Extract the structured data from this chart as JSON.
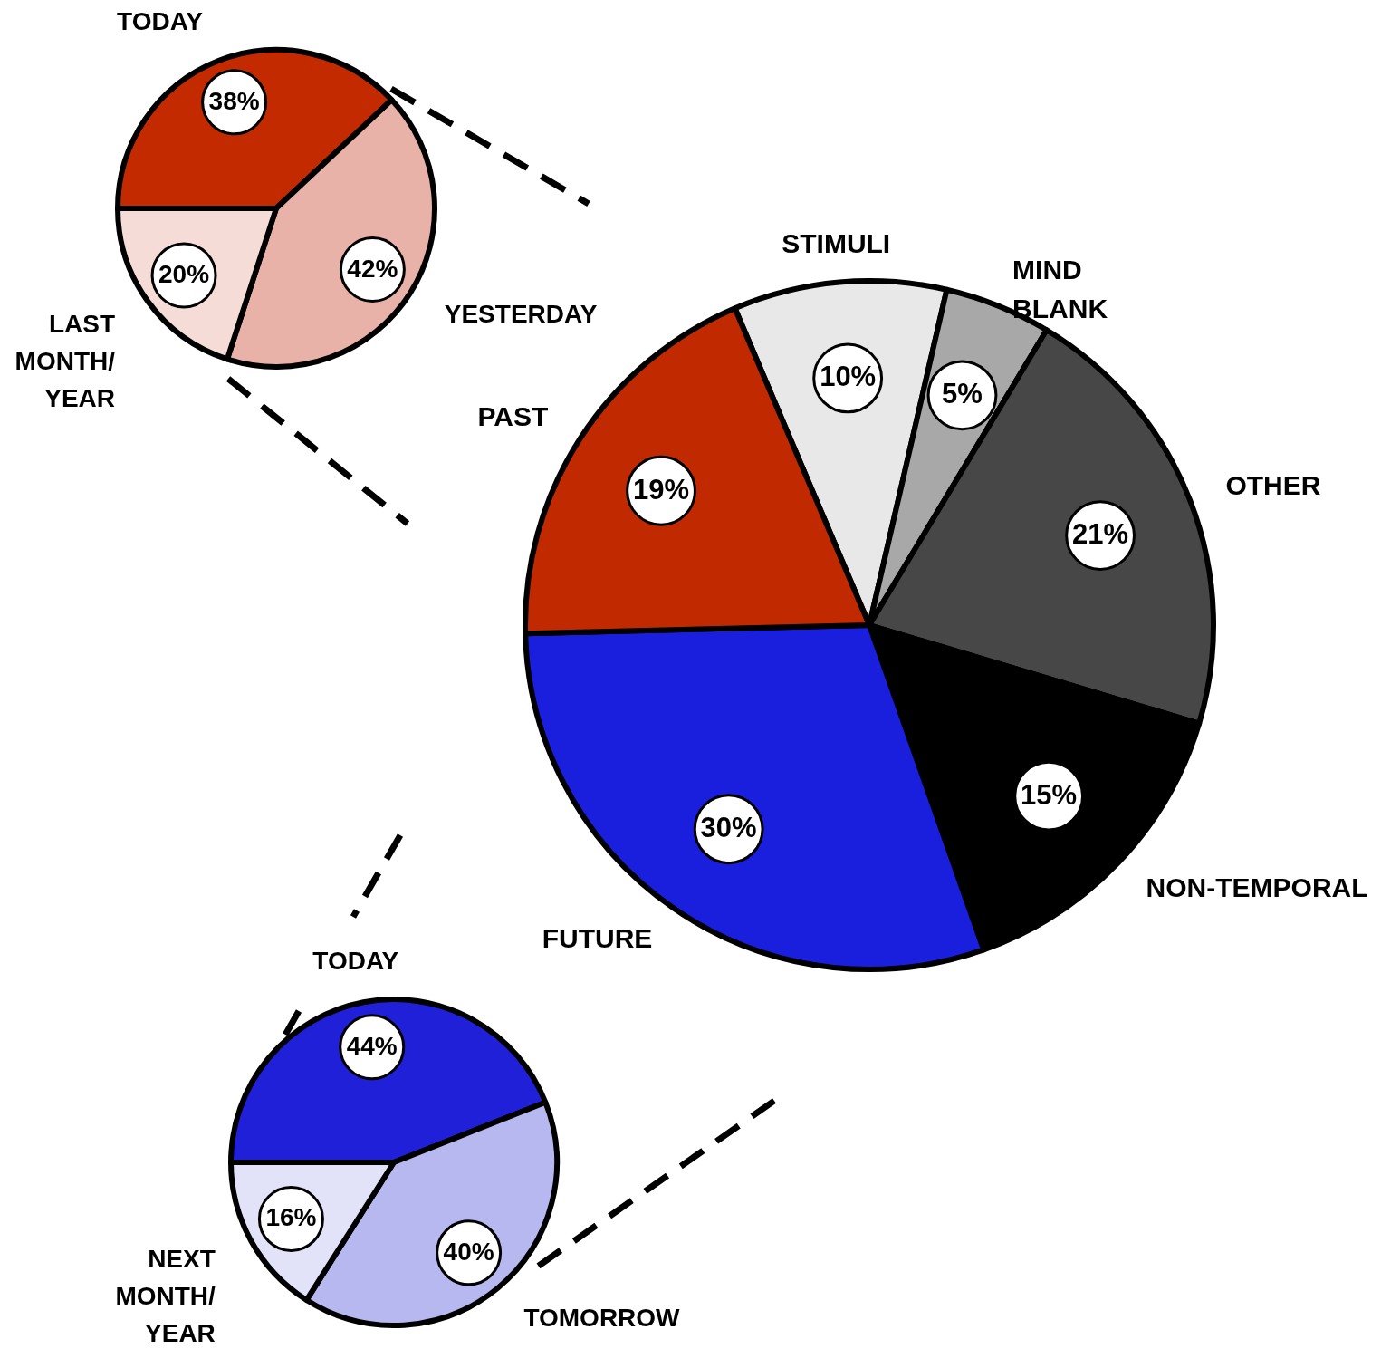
{
  "chart_data": [
    {
      "type": "pie",
      "categories": [
        "TODAY",
        "YESTERDAY",
        "LAST MONTH/YEAR"
      ],
      "values": [
        38,
        42,
        20
      ],
      "colors": [
        "#c42a00",
        "#e8b2a8",
        "#f6dcd6"
      ],
      "value_labels": [
        "38%",
        "42%",
        "20%"
      ]
    },
    {
      "type": "pie",
      "categories": [
        "STIMULI",
        "MIND BLANK",
        "OTHER",
        "NON-TEMPORAL",
        "FUTURE",
        "PAST"
      ],
      "values": [
        10,
        5,
        21,
        15,
        30,
        19
      ],
      "colors": [
        "#e8e8e8",
        "#a8a8a8",
        "#474747",
        "#000000",
        "#1a1fde",
        "#c12a00"
      ],
      "value_labels": [
        "10%",
        "5%",
        "21%",
        "15%",
        "30%",
        "19%"
      ]
    },
    {
      "type": "pie",
      "categories": [
        "TODAY",
        "TOMORROW",
        "NEXT MONTH/YEAR"
      ],
      "values": [
        44,
        40,
        16
      ],
      "colors": [
        "#2020d8",
        "#b8b8f0",
        "#e2e2f8"
      ],
      "value_labels": [
        "44%",
        "40%",
        "16%"
      ]
    }
  ]
}
